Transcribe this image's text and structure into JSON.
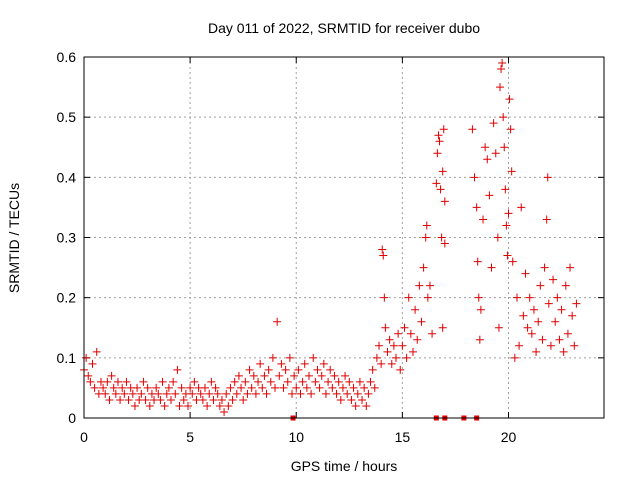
{
  "chart_data": {
    "type": "scatter",
    "title": "Day 011 of 2022, SRMTID for receiver dubo",
    "xlabel": "GPS time / hours",
    "ylabel": "SRMTID / TECUs",
    "xlim": [
      0,
      24.5
    ],
    "ylim": [
      0,
      0.6
    ],
    "x_ticks": [
      0,
      5,
      10,
      15,
      20
    ],
    "x_tick_labels": [
      "0",
      "5",
      "10",
      "15",
      "20"
    ],
    "y_ticks": [
      0,
      0.1,
      0.2,
      0.3,
      0.4,
      0.5,
      0.6
    ],
    "y_tick_labels": [
      "0",
      "0.1",
      "0.2",
      "0.3",
      "0.4",
      "0.5",
      "0.6"
    ],
    "grid": true,
    "marker": "+",
    "color": "#e00000",
    "series": [
      {
        "name": "SRMTID",
        "points": [
          [
            0.0,
            0.08
          ],
          [
            0.1,
            0.1
          ],
          [
            0.2,
            0.07
          ],
          [
            0.3,
            0.06
          ],
          [
            0.4,
            0.09
          ],
          [
            0.5,
            0.05
          ],
          [
            0.6,
            0.11
          ],
          [
            0.7,
            0.04
          ],
          [
            0.8,
            0.06
          ],
          [
            0.9,
            0.05
          ],
          [
            1.0,
            0.04
          ],
          [
            1.1,
            0.06
          ],
          [
            1.2,
            0.03
          ],
          [
            1.3,
            0.07
          ],
          [
            1.4,
            0.05
          ],
          [
            1.5,
            0.04
          ],
          [
            1.6,
            0.06
          ],
          [
            1.7,
            0.03
          ],
          [
            1.8,
            0.05
          ],
          [
            1.9,
            0.04
          ],
          [
            2.0,
            0.06
          ],
          [
            2.1,
            0.03
          ],
          [
            2.2,
            0.05
          ],
          [
            2.3,
            0.04
          ],
          [
            2.4,
            0.02
          ],
          [
            2.5,
            0.05
          ],
          [
            2.6,
            0.03
          ],
          [
            2.7,
            0.04
          ],
          [
            2.8,
            0.06
          ],
          [
            2.9,
            0.03
          ],
          [
            3.0,
            0.05
          ],
          [
            3.1,
            0.02
          ],
          [
            3.2,
            0.04
          ],
          [
            3.3,
            0.03
          ],
          [
            3.4,
            0.05
          ],
          [
            3.5,
            0.04
          ],
          [
            3.6,
            0.03
          ],
          [
            3.7,
            0.06
          ],
          [
            3.8,
            0.02
          ],
          [
            3.9,
            0.04
          ],
          [
            4.0,
            0.05
          ],
          [
            4.1,
            0.03
          ],
          [
            4.2,
            0.06
          ],
          [
            4.3,
            0.04
          ],
          [
            4.4,
            0.08
          ],
          [
            4.5,
            0.02
          ],
          [
            4.6,
            0.05
          ],
          [
            4.7,
            0.03
          ],
          [
            4.8,
            0.04
          ],
          [
            4.9,
            0.02
          ],
          [
            5.0,
            0.05
          ],
          [
            5.1,
            0.04
          ],
          [
            5.2,
            0.06
          ],
          [
            5.3,
            0.03
          ],
          [
            5.4,
            0.05
          ],
          [
            5.5,
            0.04
          ],
          [
            5.6,
            0.03
          ],
          [
            5.7,
            0.05
          ],
          [
            5.8,
            0.02
          ],
          [
            5.9,
            0.04
          ],
          [
            6.0,
            0.06
          ],
          [
            6.1,
            0.03
          ],
          [
            6.2,
            0.05
          ],
          [
            6.3,
            0.04
          ],
          [
            6.4,
            0.02
          ],
          [
            6.5,
            0.03
          ],
          [
            6.6,
            0.01
          ],
          [
            6.7,
            0.04
          ],
          [
            6.8,
            0.02
          ],
          [
            6.9,
            0.05
          ],
          [
            7.0,
            0.03
          ],
          [
            7.1,
            0.06
          ],
          [
            7.2,
            0.04
          ],
          [
            7.3,
            0.07
          ],
          [
            7.4,
            0.05
          ],
          [
            7.5,
            0.03
          ],
          [
            7.6,
            0.06
          ],
          [
            7.7,
            0.04
          ],
          [
            7.8,
            0.08
          ],
          [
            7.9,
            0.05
          ],
          [
            8.0,
            0.07
          ],
          [
            8.1,
            0.04
          ],
          [
            8.2,
            0.06
          ],
          [
            8.3,
            0.09
          ],
          [
            8.4,
            0.05
          ],
          [
            8.5,
            0.07
          ],
          [
            8.6,
            0.04
          ],
          [
            8.7,
            0.08
          ],
          [
            8.8,
            0.06
          ],
          [
            8.9,
            0.1
          ],
          [
            9.0,
            0.05
          ],
          [
            9.1,
            0.16
          ],
          [
            9.2,
            0.07
          ],
          [
            9.3,
            0.09
          ],
          [
            9.4,
            0.05
          ],
          [
            9.5,
            0.08
          ],
          [
            9.6,
            0.06
          ],
          [
            9.7,
            0.1
          ],
          [
            9.8,
            0.04
          ],
          [
            9.9,
            0.07
          ],
          [
            10.0,
            0.05
          ],
          [
            10.1,
            0.08
          ],
          [
            10.2,
            0.04
          ],
          [
            10.3,
            0.06
          ],
          [
            10.4,
            0.09
          ],
          [
            10.5,
            0.05
          ],
          [
            10.6,
            0.07
          ],
          [
            10.7,
            0.04
          ],
          [
            10.8,
            0.1
          ],
          [
            10.9,
            0.06
          ],
          [
            11.0,
            0.08
          ],
          [
            11.1,
            0.05
          ],
          [
            11.2,
            0.07
          ],
          [
            11.3,
            0.09
          ],
          [
            11.4,
            0.04
          ],
          [
            11.5,
            0.06
          ],
          [
            11.6,
            0.08
          ],
          [
            11.7,
            0.05
          ],
          [
            11.8,
            0.07
          ],
          [
            11.9,
            0.04
          ],
          [
            12.0,
            0.06
          ],
          [
            12.1,
            0.03
          ],
          [
            12.2,
            0.05
          ],
          [
            12.3,
            0.07
          ],
          [
            12.4,
            0.04
          ],
          [
            12.5,
            0.06
          ],
          [
            12.6,
            0.03
          ],
          [
            12.7,
            0.05
          ],
          [
            12.8,
            0.02
          ],
          [
            12.9,
            0.04
          ],
          [
            13.0,
            0.06
          ],
          [
            13.1,
            0.03
          ],
          [
            13.2,
            0.05
          ],
          [
            13.3,
            0.02
          ],
          [
            13.4,
            0.04
          ],
          [
            13.5,
            0.06
          ],
          [
            13.6,
            0.08
          ],
          [
            13.7,
            0.05
          ],
          [
            13.8,
            0.1
          ],
          [
            13.9,
            0.12
          ],
          [
            14.0,
            0.09
          ],
          [
            14.05,
            0.28
          ],
          [
            14.1,
            0.27
          ],
          [
            14.15,
            0.2
          ],
          [
            14.2,
            0.15
          ],
          [
            14.3,
            0.11
          ],
          [
            14.4,
            0.13
          ],
          [
            14.5,
            0.09
          ],
          [
            14.6,
            0.12
          ],
          [
            14.7,
            0.1
          ],
          [
            14.8,
            0.14
          ],
          [
            14.9,
            0.08
          ],
          [
            15.0,
            0.12
          ],
          [
            15.1,
            0.15
          ],
          [
            15.2,
            0.1
          ],
          [
            15.3,
            0.2
          ],
          [
            15.4,
            0.14
          ],
          [
            15.5,
            0.11
          ],
          [
            15.6,
            0.18
          ],
          [
            15.7,
            0.13
          ],
          [
            15.8,
            0.22
          ],
          [
            15.9,
            0.16
          ],
          [
            16.0,
            0.25
          ],
          [
            16.1,
            0.3
          ],
          [
            16.15,
            0.32
          ],
          [
            16.2,
            0.2
          ],
          [
            16.3,
            0.22
          ],
          [
            16.4,
            0.14
          ],
          [
            16.6,
            0.39
          ],
          [
            16.65,
            0.44
          ],
          [
            16.7,
            0.47
          ],
          [
            16.75,
            0.46
          ],
          [
            16.8,
            0.38
          ],
          [
            16.85,
            0.3
          ],
          [
            16.9,
            0.41
          ],
          [
            16.95,
            0.48
          ],
          [
            17.0,
            0.36
          ],
          [
            16.9,
            0.15
          ],
          [
            17.0,
            0.29
          ],
          [
            18.3,
            0.48
          ],
          [
            18.4,
            0.4
          ],
          [
            18.5,
            0.35
          ],
          [
            18.55,
            0.26
          ],
          [
            18.6,
            0.2
          ],
          [
            18.65,
            0.13
          ],
          [
            18.7,
            0.18
          ],
          [
            18.8,
            0.33
          ],
          [
            18.9,
            0.45
          ],
          [
            19.0,
            0.43
          ],
          [
            19.1,
            0.37
          ],
          [
            19.2,
            0.25
          ],
          [
            19.3,
            0.49
          ],
          [
            19.4,
            0.44
          ],
          [
            19.5,
            0.3
          ],
          [
            19.55,
            0.15
          ],
          [
            19.6,
            0.55
          ],
          [
            19.65,
            0.58
          ],
          [
            19.7,
            0.59
          ],
          [
            19.75,
            0.5
          ],
          [
            19.8,
            0.45
          ],
          [
            19.85,
            0.38
          ],
          [
            19.9,
            0.32
          ],
          [
            19.95,
            0.27
          ],
          [
            20.0,
            0.34
          ],
          [
            20.05,
            0.53
          ],
          [
            20.1,
            0.48
          ],
          [
            20.15,
            0.41
          ],
          [
            20.2,
            0.26
          ],
          [
            20.3,
            0.1
          ],
          [
            20.4,
            0.2
          ],
          [
            20.5,
            0.12
          ],
          [
            20.6,
            0.35
          ],
          [
            20.7,
            0.17
          ],
          [
            20.8,
            0.24
          ],
          [
            20.9,
            0.15
          ],
          [
            21.0,
            0.2
          ],
          [
            21.1,
            0.14
          ],
          [
            21.2,
            0.18
          ],
          [
            21.3,
            0.11
          ],
          [
            21.4,
            0.16
          ],
          [
            21.5,
            0.22
          ],
          [
            21.6,
            0.13
          ],
          [
            21.7,
            0.25
          ],
          [
            21.8,
            0.33
          ],
          [
            21.85,
            0.4
          ],
          [
            21.9,
            0.19
          ],
          [
            22.0,
            0.12
          ],
          [
            22.1,
            0.23
          ],
          [
            22.2,
            0.16
          ],
          [
            22.3,
            0.2
          ],
          [
            22.4,
            0.13
          ],
          [
            22.5,
            0.18
          ],
          [
            22.6,
            0.11
          ],
          [
            22.7,
            0.22
          ],
          [
            22.8,
            0.14
          ],
          [
            22.9,
            0.25
          ],
          [
            23.0,
            0.17
          ],
          [
            23.1,
            0.12
          ],
          [
            23.2,
            0.19
          ]
        ]
      }
    ],
    "zero_points_x": [
      9.85,
      16.6,
      17.0,
      17.9,
      18.5
    ]
  }
}
